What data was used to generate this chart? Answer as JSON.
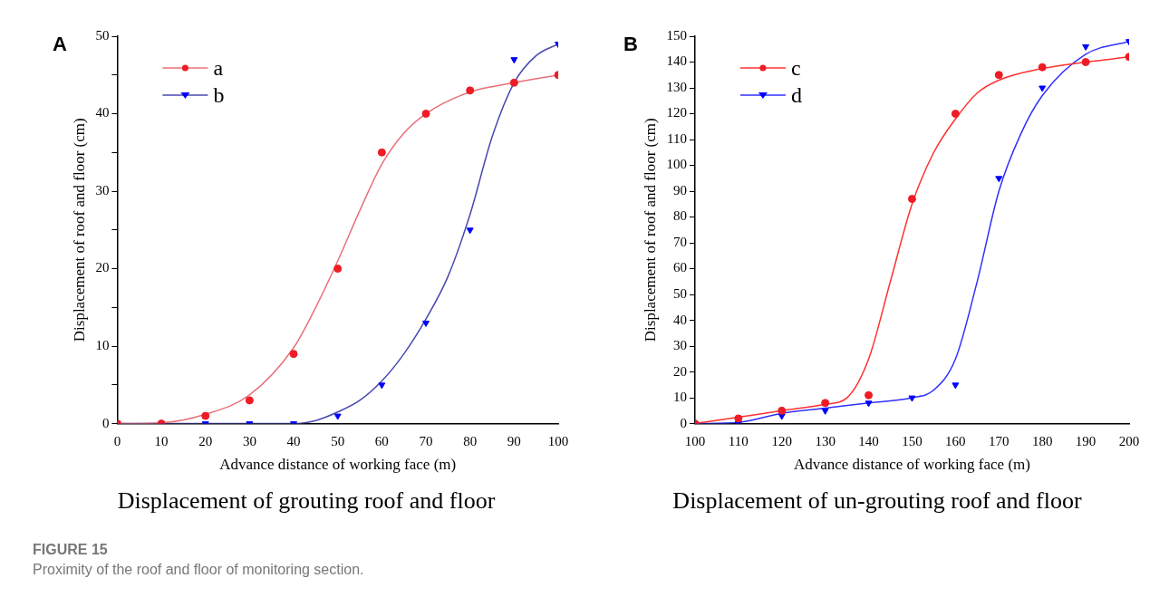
{
  "chart_data": [
    {
      "type": "scatter",
      "title": "A",
      "subtitle": "Displacement of grouting roof and floor",
      "xlabel": "Advance distance of working face (m)",
      "ylabel": "Displacement of roof and floor (cm)",
      "xlim": [
        0,
        100
      ],
      "xticks": [
        0,
        10,
        20,
        30,
        40,
        50,
        60,
        70,
        80,
        90,
        100
      ],
      "ylim": [
        0,
        50
      ],
      "yticks": [
        0,
        {
          "value": 5,
          "label": null
        },
        10,
        {
          "value": 15,
          "label": null
        },
        20,
        {
          "value": 25,
          "label": null
        },
        30,
        {
          "value": 35,
          "label": null
        },
        40,
        {
          "value": 45,
          "label": null
        },
        50
      ],
      "grid": false,
      "legend": "top left",
      "annotations": [
        "FIGURE 15",
        "Proximity of the roof and floor of monitoring section."
      ],
      "series": [
        {
          "name": "a",
          "marker": "circle",
          "color": "#ee1c25",
          "x": [
            0,
            10,
            20,
            30,
            40,
            50,
            60,
            70,
            80,
            90,
            100
          ],
          "values": [
            0,
            0,
            1,
            3,
            9,
            20,
            35,
            40,
            43,
            44,
            45
          ]
        },
        {
          "name": "b",
          "marker": "triangle",
          "color": "#0000ff",
          "x": [
            0,
            10,
            20,
            30,
            40,
            50,
            60,
            70,
            80,
            90,
            100
          ],
          "values": [
            0,
            0,
            0,
            0,
            0,
            1,
            5,
            13,
            25,
            47,
            49
          ]
        },
        {
          "type": "line",
          "color": "#e8707a",
          "x": [
            0,
            10,
            20,
            30,
            40,
            45,
            50,
            55,
            60,
            65,
            70,
            80,
            90,
            100
          ],
          "values": [
            0,
            0.1,
            1.2,
            3.7,
            9.8,
            15,
            21,
            27.5,
            33.5,
            37.5,
            40,
            42.8,
            44,
            45
          ]
        },
        {
          "type": "line",
          "color": "#4848b0",
          "x": [
            0,
            10,
            20,
            30,
            40,
            45,
            50,
            55,
            60,
            65,
            70,
            75,
            80,
            85,
            90,
            95,
            100
          ],
          "values": [
            0,
            0,
            0,
            0,
            0,
            0.4,
            1.5,
            3,
            5.5,
            9,
            13.5,
            19,
            27,
            37,
            44,
            47.5,
            49
          ]
        }
      ]
    },
    {
      "type": "scatter",
      "title": "B",
      "subtitle": "Displacement of un-grouting roof and floor",
      "xlabel": "Advance distance of working face (m)",
      "ylabel": "Displacement of roof and floor (cm)",
      "xlim": [
        100,
        200
      ],
      "xticks": [
        100,
        110,
        120,
        130,
        140,
        150,
        160,
        170,
        180,
        190,
        200
      ],
      "ylim": [
        0,
        150
      ],
      "yticks": [
        0,
        10,
        20,
        30,
        40,
        50,
        60,
        70,
        80,
        90,
        100,
        110,
        120,
        130,
        140,
        150
      ],
      "grid": false,
      "legend": "top left",
      "series": [
        {
          "name": "c",
          "marker": "circle",
          "color": "#ee1c25",
          "x": [
            100,
            110,
            120,
            130,
            140,
            150,
            160,
            170,
            180,
            190,
            200
          ],
          "values": [
            0,
            2,
            5,
            8,
            11,
            87,
            120,
            135,
            138,
            140,
            142
          ]
        },
        {
          "name": "d",
          "marker": "triangle",
          "color": "#0000ff",
          "x": [
            100,
            110,
            120,
            130,
            140,
            150,
            160,
            170,
            180,
            190,
            200
          ],
          "values": [
            0,
            0,
            3,
            5,
            8,
            10,
            15,
            95,
            130,
            146,
            148
          ]
        },
        {
          "type": "line",
          "color": "#ff3030",
          "x": [
            100,
            110,
            120,
            130,
            135,
            140,
            145,
            150,
            155,
            160,
            165,
            170,
            180,
            190,
            200
          ],
          "values": [
            0,
            2.5,
            5,
            7.5,
            10,
            25,
            55,
            85,
            105,
            118,
            128,
            133,
            137.5,
            140,
            142
          ]
        },
        {
          "type": "line",
          "color": "#3030ff",
          "x": [
            100,
            110,
            120,
            130,
            140,
            150,
            155,
            160,
            165,
            170,
            175,
            180,
            190,
            200
          ],
          "values": [
            0,
            0.5,
            4,
            6,
            8,
            10,
            13,
            25,
            55,
            90,
            112,
            127,
            143,
            148
          ]
        }
      ]
    }
  ]
}
